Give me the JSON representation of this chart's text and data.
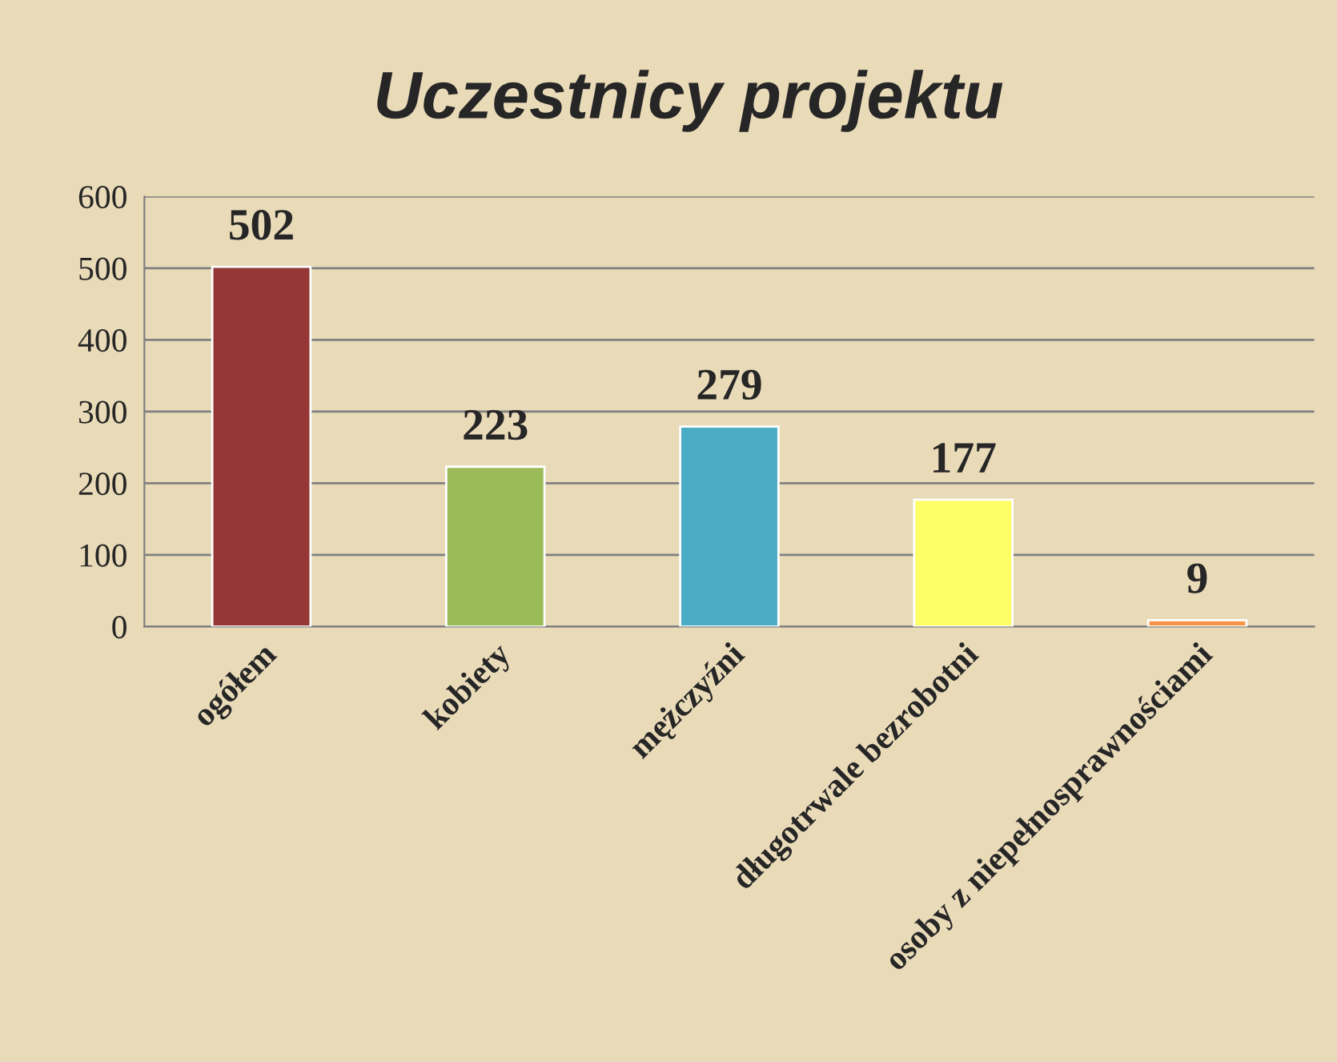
{
  "chart_data": {
    "type": "bar",
    "title": "Uczestnicy projektu",
    "categories": [
      "ogółem",
      "kobiety",
      "mężczyźni",
      "długotrwale bezrobotni",
      "osoby z niepełnosprawnościami"
    ],
    "values": [
      502,
      223,
      279,
      177,
      9
    ],
    "colors": [
      "#953735",
      "#9bbb59",
      "#4bacc6",
      "#ffff66",
      "#f79646"
    ],
    "ylim": [
      0,
      600
    ],
    "yticks": [
      0,
      100,
      200,
      300,
      400,
      500,
      600
    ],
    "grid": "y",
    "data_labels": true,
    "legend": false
  }
}
